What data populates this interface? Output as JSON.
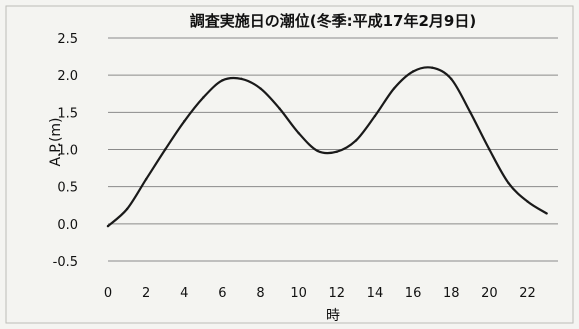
{
  "chart_data": {
    "type": "line",
    "title": "調査実施日の潮位(冬季:平成17年2月9日)",
    "xlabel": "時",
    "ylabel": "A.P.(m)",
    "xlim": [
      0,
      23.6
    ],
    "ylim": [
      -0.5,
      2.5
    ],
    "x_ticks": [
      "0",
      "2",
      "4",
      "6",
      "8",
      "10",
      "12",
      "14",
      "16",
      "18",
      "20",
      "22"
    ],
    "y_ticks": [
      "2.5",
      "2.0",
      "1.5",
      "1.0",
      "0.5",
      "0.0",
      "-0.5"
    ],
    "grid": true,
    "legend": false,
    "colors": {
      "line": "#1a1a1a",
      "grid": "#8a8a8a",
      "background": "#f4f4f1"
    },
    "series": [
      {
        "x": [
          0,
          1,
          2,
          3,
          4,
          5,
          6,
          7,
          8,
          9,
          10,
          11,
          12,
          13,
          14,
          15,
          16,
          17,
          18,
          19,
          20,
          21,
          22,
          23
        ],
        "values": [
          -0.03,
          0.2,
          0.6,
          1.0,
          1.38,
          1.7,
          1.93,
          1.95,
          1.82,
          1.55,
          1.22,
          0.98,
          0.97,
          1.12,
          1.45,
          1.82,
          2.05,
          2.1,
          1.95,
          1.5,
          1.0,
          0.55,
          0.3,
          0.14
        ]
      }
    ]
  }
}
